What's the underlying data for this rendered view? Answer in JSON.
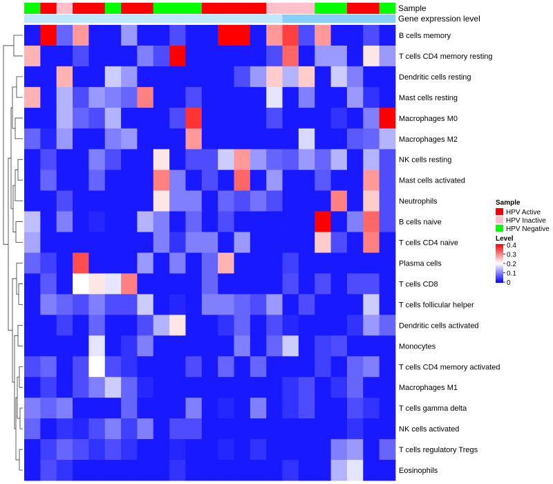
{
  "chart_data": {
    "type": "heatmap",
    "annotation_tracks": [
      "Sample",
      "Gene expression level"
    ],
    "row_labels": [
      "B cells memory",
      "T cells CD4 memory resting",
      "Dendritic cells resting",
      "Mast cells resting",
      "Macrophages M0",
      "Macrophages M2",
      "NK cells resting",
      "Mast cells activated",
      "Neutrophils",
      "B cells naive",
      "T cells CD4 naive",
      "Plasma cells",
      "T cells CD8",
      "T cells follicular helper",
      "Dendritic cells activated",
      "Monocytes",
      "T cells CD4 memory activated",
      "Macrophages M1",
      "T cells gamma delta",
      "NK cells activated",
      "T cells regulatory  Tregs",
      "Eosinophils"
    ],
    "sample_groups": [
      "HPV Negative",
      "HPV Active",
      "HPV Inactive",
      "HPV Active",
      "HPV Active",
      "HPV Negative",
      "HPV Active",
      "HPV Active",
      "HPV Negative",
      "HPV Negative",
      "HPV Negative",
      "HPV Active",
      "HPV Active",
      "HPV Active",
      "HPV Active",
      "HPV Inactive",
      "HPV Inactive",
      "HPV Inactive",
      "HPV Negative",
      "HPV Negative",
      "HPV Active",
      "HPV Active",
      "HPV Negative"
    ],
    "values": [
      [
        0.02,
        0.4,
        0.08,
        0.28,
        0.02,
        0.02,
        0.12,
        0.02,
        0.02,
        0.06,
        0.02,
        0.02,
        0.4,
        0.4,
        0.02,
        0.28,
        0.35,
        0.06,
        0.28,
        0.02,
        0.02,
        0.06,
        0.02
      ],
      [
        0.26,
        0.02,
        0.02,
        0.06,
        0.02,
        0.02,
        0.02,
        0.1,
        0.06,
        0.4,
        0.02,
        0.02,
        0.02,
        0.02,
        0.02,
        0.06,
        0.32,
        0.02,
        0.12,
        0.12,
        0.02,
        0.22,
        0.12
      ],
      [
        0.02,
        0.02,
        0.26,
        0.02,
        0.02,
        0.16,
        0.12,
        0.02,
        0.02,
        0.02,
        0.02,
        0.02,
        0.02,
        0.06,
        0.12,
        0.24,
        0.14,
        0.24,
        0.02,
        0.16,
        0.1,
        0.02,
        0.02
      ],
      [
        0.26,
        0.02,
        0.14,
        0.06,
        0.12,
        0.1,
        0.08,
        0.3,
        0.02,
        0.02,
        0.06,
        0.02,
        0.02,
        0.02,
        0.02,
        0.18,
        0.02,
        0.1,
        0.02,
        0.02,
        0.12,
        0.04,
        0.02
      ],
      [
        0.02,
        0.02,
        0.14,
        0.08,
        0.06,
        0.14,
        0.02,
        0.02,
        0.02,
        0.06,
        0.36,
        0.02,
        0.02,
        0.02,
        0.02,
        0.06,
        0.02,
        0.02,
        0.02,
        0.04,
        0.02,
        0.1,
        0.4
      ],
      [
        0.08,
        0.03,
        0.12,
        0.02,
        0.02,
        0.1,
        0.12,
        0.02,
        0.02,
        0.02,
        0.28,
        0.02,
        0.02,
        0.02,
        0.02,
        0.02,
        0.02,
        0.17,
        0.02,
        0.02,
        0.07,
        0.08,
        0.14
      ],
      [
        0.02,
        0.06,
        0.02,
        0.02,
        0.1,
        0.06,
        0.02,
        0.02,
        0.22,
        0.02,
        0.06,
        0.06,
        0.16,
        0.28,
        0.12,
        0.08,
        0.07,
        0.12,
        0.08,
        0.14,
        0.02,
        0.14,
        0.06
      ],
      [
        0.02,
        0.08,
        0.02,
        0.02,
        0.08,
        0.02,
        0.02,
        0.02,
        0.3,
        0.1,
        0.02,
        0.06,
        0.02,
        0.32,
        0.02,
        0.12,
        0.02,
        0.02,
        0.07,
        0.02,
        0.02,
        0.28,
        0.06
      ],
      [
        0.02,
        0.02,
        0.06,
        0.02,
        0.02,
        0.02,
        0.02,
        0.02,
        0.22,
        0.1,
        0.1,
        0.02,
        0.08,
        0.06,
        0.09,
        0.06,
        0.02,
        0.02,
        0.02,
        0.3,
        0.02,
        0.24,
        0.06
      ],
      [
        0.15,
        0.02,
        0.1,
        0.02,
        0.03,
        0.02,
        0.02,
        0.14,
        0.1,
        0.02,
        0.08,
        0.02,
        0.06,
        0.02,
        0.02,
        0.02,
        0.02,
        0.02,
        0.4,
        0.02,
        0.1,
        0.32,
        0.06
      ],
      [
        0.13,
        0.02,
        0.02,
        0.02,
        0.02,
        0.02,
        0.02,
        0.02,
        0.1,
        0.04,
        0.1,
        0.1,
        0.02,
        0.12,
        0.02,
        0.02,
        0.02,
        0.02,
        0.24,
        0.06,
        0.02,
        0.3,
        0.02
      ],
      [
        0.08,
        0.05,
        0.02,
        0.34,
        0.02,
        0.02,
        0.02,
        0.12,
        0.02,
        0.1,
        0.02,
        0.08,
        0.26,
        0.02,
        0.02,
        0.02,
        0.05,
        0.02,
        0.02,
        0.02,
        0.02,
        0.02,
        0.02
      ],
      [
        0.02,
        0.07,
        0.02,
        0.2,
        0.22,
        0.18,
        0.3,
        0.02,
        0.02,
        0.02,
        0.02,
        0.08,
        0.02,
        0.02,
        0.02,
        0.02,
        0.06,
        0.02,
        0.06,
        0.02,
        0.06,
        0.06,
        0.02
      ],
      [
        0.02,
        0.1,
        0.08,
        0.06,
        0.1,
        0.06,
        0.06,
        0.16,
        0.02,
        0.03,
        0.02,
        0.1,
        0.1,
        0.08,
        0.06,
        0.12,
        0.02,
        0.06,
        0.02,
        0.02,
        0.02,
        0.16,
        0.02
      ],
      [
        0.02,
        0.02,
        0.05,
        0.02,
        0.08,
        0.02,
        0.02,
        0.06,
        0.14,
        0.22,
        0.02,
        0.02,
        0.04,
        0.08,
        0.02,
        0.06,
        0.03,
        0.02,
        0.02,
        0.02,
        0.04,
        0.12,
        0.08
      ],
      [
        0.02,
        0.02,
        0.02,
        0.02,
        0.18,
        0.02,
        0.04,
        0.1,
        0.02,
        0.02,
        0.02,
        0.02,
        0.02,
        0.1,
        0.02,
        0.08,
        0.16,
        0.02,
        0.05,
        0.06,
        0.02,
        0.02,
        0.02
      ],
      [
        0.06,
        0.08,
        0.02,
        0.06,
        0.2,
        0.06,
        0.04,
        0.02,
        0.02,
        0.02,
        0.06,
        0.02,
        0.08,
        0.02,
        0.08,
        0.02,
        0.02,
        0.02,
        0.05,
        0.02,
        0.08,
        0.1,
        0.02
      ],
      [
        0.02,
        0.05,
        0.02,
        0.06,
        0.1,
        0.16,
        0.08,
        0.03,
        0.02,
        0.02,
        0.02,
        0.02,
        0.02,
        0.02,
        0.02,
        0.02,
        0.04,
        0.06,
        0.02,
        0.04,
        0.08,
        0.02,
        0.02
      ],
      [
        0.1,
        0.08,
        0.1,
        0.02,
        0.02,
        0.02,
        0.08,
        0.02,
        0.02,
        0.02,
        0.1,
        0.02,
        0.03,
        0.02,
        0.1,
        0.02,
        0.04,
        0.06,
        0.02,
        0.02,
        0.06,
        0.04,
        0.02
      ],
      [
        0.08,
        0.02,
        0.04,
        0.03,
        0.06,
        0.1,
        0.05,
        0.1,
        0.02,
        0.06,
        0.06,
        0.02,
        0.02,
        0.02,
        0.02,
        0.02,
        0.02,
        0.02,
        0.02,
        0.02,
        0.04,
        0.02,
        0.02
      ],
      [
        0.02,
        0.05,
        0.08,
        0.06,
        0.04,
        0.06,
        0.04,
        0.02,
        0.02,
        0.03,
        0.02,
        0.02,
        0.03,
        0.02,
        0.04,
        0.02,
        0.02,
        0.02,
        0.02,
        0.1,
        0.12,
        0.02,
        0.08
      ],
      [
        0.02,
        0.06,
        0.04,
        0.02,
        0.02,
        0.02,
        0.02,
        0.02,
        0.02,
        0.04,
        0.02,
        0.02,
        0.02,
        0.02,
        0.02,
        0.02,
        0.04,
        0.02,
        0.02,
        0.14,
        0.18,
        0.02,
        0.02
      ]
    ],
    "color_scale": {
      "low": "#0000ff",
      "mid": "#ffffff",
      "high": "#ff0000",
      "min": 0,
      "mid_value": 0.2,
      "max": 0.4
    },
    "group_colors": {
      "HPV Active": "#ff0000",
      "HPV Inactive": "#ffc0cb",
      "HPV Negative": "#00ff00"
    },
    "gene_expression_track": {
      "colors": [
        "#bfe8ff",
        "#87cefa"
      ],
      "split_after_column": 16
    },
    "legend": {
      "sample_title": "Sample",
      "sample_entries": [
        "HPV Active",
        "HPV Inactive",
        "HPV Negative"
      ],
      "level_title": "Level",
      "level_ticks": [
        "0.4",
        "0.3",
        "0.2",
        "0.1",
        "0"
      ],
      "placement": "right"
    },
    "row_dendrogram": true
  }
}
